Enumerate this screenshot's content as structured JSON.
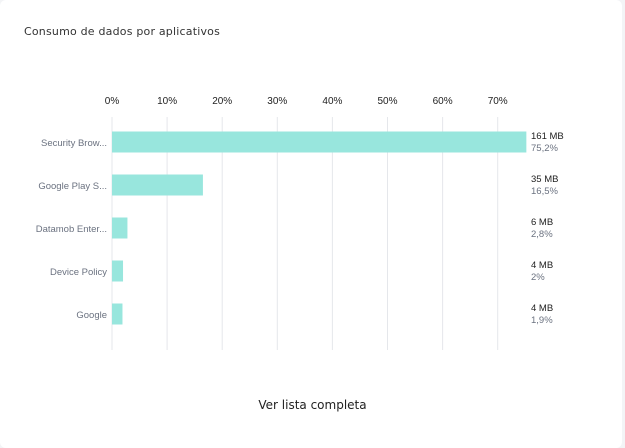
{
  "card": {
    "title": "Consumo de dados por aplicativos",
    "view_all_label": "Ver lista completa"
  },
  "colors": {
    "bar": "#98e6dd",
    "grid": "#e5e7eb"
  },
  "chart_data": {
    "type": "bar",
    "orientation": "horizontal",
    "title": "Consumo de dados por aplicativos",
    "xlim": [
      0,
      75.2
    ],
    "x_ticks": [
      "0%",
      "10%",
      "20%",
      "30%",
      "40%",
      "50%",
      "60%",
      "70%"
    ],
    "x_tick_values": [
      0,
      10,
      20,
      30,
      40,
      50,
      60,
      70
    ],
    "categories": [
      "Security Brow...",
      "Google Play S...",
      "Datamob Enter...",
      "Device Policy",
      "Google"
    ],
    "values": [
      75.2,
      16.5,
      2.8,
      2,
      1.9
    ],
    "mb_labels": [
      "161 MB",
      "35 MB",
      "6 MB",
      "4 MB",
      "4 MB"
    ],
    "pct_labels": [
      "75,2%",
      "16,5%",
      "2,8%",
      "2%",
      "1,9%"
    ],
    "grid": true
  }
}
